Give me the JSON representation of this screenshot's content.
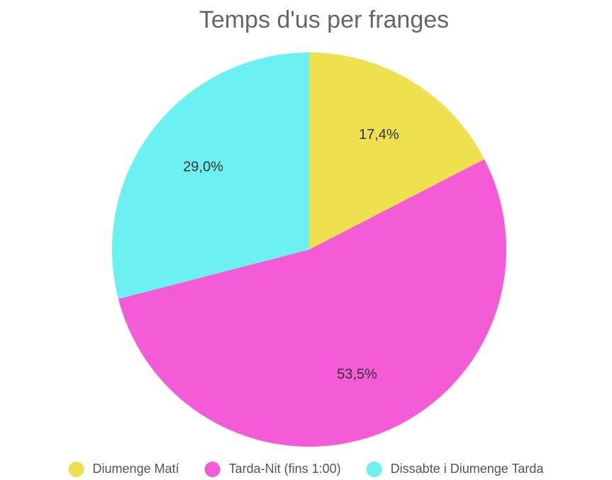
{
  "chart_data": {
    "type": "pie",
    "title": "Temps d'us per franges",
    "categories": [
      "Diumenge Matí",
      "Tarda-Nit (fins 1:00)",
      "Dissabte i Diumenge Tarda"
    ],
    "values": [
      17.4,
      53.5,
      29.0
    ],
    "value_labels": [
      "17,4%",
      "53,5%",
      "29,0%"
    ],
    "colors": [
      "#eee04f",
      "#f35bd7",
      "#6df0f0"
    ],
    "legend": "bottom"
  }
}
